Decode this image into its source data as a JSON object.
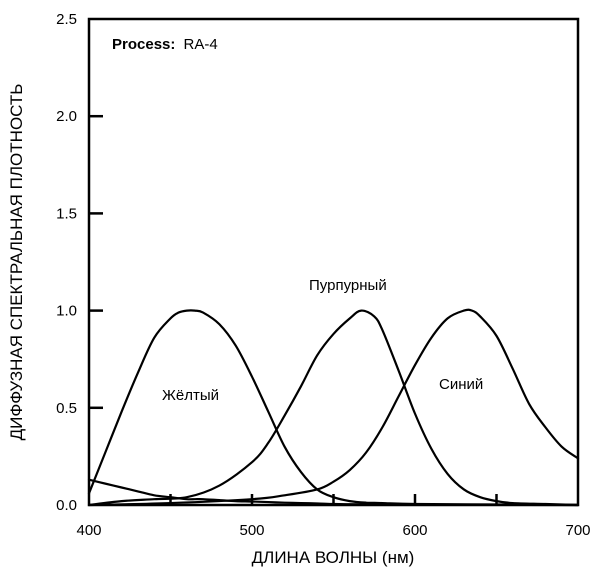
{
  "chart_data": {
    "type": "line",
    "title": "",
    "xlabel": "ДЛИНА ВОЛНЫ (нм)",
    "ylabel": "ДИФФУЗНАЯ СПЕКТРАЛЬНАЯ ПЛОТНОСТЬ",
    "xlim": [
      400,
      700
    ],
    "ylim": [
      0,
      2.5
    ],
    "x_ticks": [
      "400",
      "500",
      "600",
      "700"
    ],
    "y_ticks": [
      "0.0",
      "0.5",
      "1.0",
      "1.5",
      "2.0",
      "2.5"
    ],
    "grid": false,
    "process_label": "Process:",
    "process_value": "RA-4",
    "series": [
      {
        "name": "Жёлтый",
        "x": [
          400,
          410,
          420,
          430,
          440,
          450,
          460,
          465,
          470,
          480,
          490,
          500,
          510,
          520,
          530,
          540,
          550,
          560,
          580,
          600,
          650,
          700
        ],
        "values": [
          0.13,
          0.11,
          0.09,
          0.07,
          0.05,
          0.04,
          0.03,
          0.03,
          0.03,
          0.025,
          0.02,
          0.018,
          0.015,
          0.012,
          0.01,
          0.008,
          0.005,
          0.004,
          0.003,
          0.002,
          0.001,
          0.0
        ]
      },
      {
        "name": "",
        "x": [
          400,
          410,
          420,
          430,
          440,
          450,
          455,
          460,
          465,
          470,
          480,
          490,
          500,
          510,
          520,
          530,
          540,
          550,
          560,
          570,
          580,
          600,
          650,
          700
        ],
        "values": [
          0.06,
          0.27,
          0.48,
          0.68,
          0.86,
          0.96,
          0.99,
          1.0,
          1.0,
          0.99,
          0.93,
          0.82,
          0.66,
          0.48,
          0.3,
          0.17,
          0.08,
          0.04,
          0.02,
          0.012,
          0.01,
          0.005,
          0.003,
          0.0
        ]
      },
      {
        "name": "Пурпурный",
        "x": [
          400,
          420,
          440,
          460,
          480,
          500,
          510,
          520,
          530,
          540,
          550,
          560,
          567,
          575,
          580,
          590,
          600,
          610,
          620,
          630,
          640,
          650,
          660,
          680,
          700
        ],
        "values": [
          0.0,
          0.02,
          0.03,
          0.04,
          0.1,
          0.22,
          0.32,
          0.46,
          0.61,
          0.77,
          0.88,
          0.96,
          1.0,
          0.97,
          0.9,
          0.69,
          0.47,
          0.29,
          0.16,
          0.08,
          0.04,
          0.02,
          0.01,
          0.005,
          0.0
        ]
      },
      {
        "name": "Синий",
        "x": [
          400,
          450,
          500,
          520,
          540,
          550,
          560,
          570,
          580,
          590,
          600,
          610,
          620,
          630,
          635,
          640,
          650,
          660,
          670,
          680,
          690,
          700
        ],
        "values": [
          0.0,
          0.01,
          0.03,
          0.05,
          0.08,
          0.12,
          0.18,
          0.27,
          0.4,
          0.56,
          0.72,
          0.86,
          0.96,
          1.0,
          1.0,
          0.97,
          0.87,
          0.7,
          0.52,
          0.4,
          0.3,
          0.24
        ]
      }
    ]
  }
}
